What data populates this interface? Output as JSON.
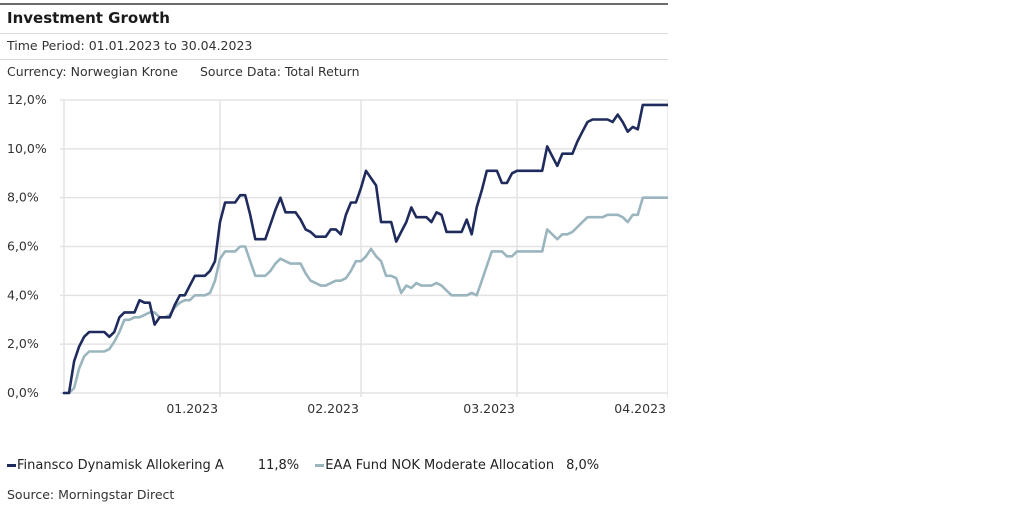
{
  "header": {
    "title": "Investment Growth",
    "time_period": "Time Period: 01.01.2023 to 30.04.2023",
    "currency": "Currency: Norwegian Krone",
    "source_data": "Source Data: Total Return"
  },
  "footer": {
    "source": "Source: Morningstar Direct"
  },
  "colors": {
    "series_1": "#1f2b5c",
    "series_2": "#9bb5bf",
    "grid": "#e3e3e3"
  },
  "chart_data": {
    "type": "line",
    "title": "Investment Growth",
    "xlabel": "",
    "ylabel": "",
    "x_unit": "day index from 01.01.2023",
    "xlim": [
      0,
      120
    ],
    "ylim": [
      0,
      12
    ],
    "grid": true,
    "x_ticks": [
      {
        "x": 31,
        "label": "01.2023"
      },
      {
        "x": 59,
        "label": "02.2023"
      },
      {
        "x": 90,
        "label": "03.2023"
      },
      {
        "x": 120,
        "label": "04.2023"
      }
    ],
    "y_ticks": [
      {
        "y": 0,
        "label": "0,0%"
      },
      {
        "y": 2,
        "label": "2,0%"
      },
      {
        "y": 4,
        "label": "4,0%"
      },
      {
        "y": 6,
        "label": "6,0%"
      },
      {
        "y": 8,
        "label": "8,0%"
      },
      {
        "y": 10,
        "label": "10,0%"
      },
      {
        "y": 12,
        "label": "12,0%"
      }
    ],
    "legend_position": "bottom",
    "series": [
      {
        "name": "Finansco Dynamisk Allokering A",
        "final_value_label": "11,8%",
        "x": [
          0,
          1,
          2,
          3,
          4,
          5,
          6,
          7,
          8,
          9,
          10,
          11,
          12,
          13,
          14,
          15,
          16,
          17,
          18,
          19,
          20,
          21,
          22,
          23,
          24,
          25,
          26,
          27,
          28,
          29,
          30,
          31,
          32,
          33,
          34,
          35,
          36,
          37,
          38,
          39,
          40,
          41,
          42,
          43,
          44,
          45,
          46,
          47,
          48,
          49,
          50,
          51,
          52,
          53,
          54,
          55,
          56,
          57,
          58,
          59,
          60,
          61,
          62,
          63,
          64,
          65,
          66,
          67,
          68,
          69,
          70,
          71,
          72,
          73,
          74,
          75,
          76,
          77,
          78,
          79,
          80,
          81,
          82,
          83,
          84,
          85,
          86,
          87,
          88,
          89,
          90,
          91,
          92,
          93,
          94,
          95,
          96,
          97,
          98,
          99,
          100,
          101,
          102,
          103,
          104,
          105,
          106,
          107,
          108,
          109,
          110,
          111,
          112,
          113,
          114,
          115,
          116,
          117,
          118,
          119,
          120
        ],
        "values": [
          0.0,
          0.0,
          1.3,
          1.9,
          2.3,
          2.5,
          2.5,
          2.5,
          2.5,
          2.3,
          2.5,
          3.1,
          3.3,
          3.3,
          3.3,
          3.8,
          3.7,
          3.7,
          2.8,
          3.1,
          3.1,
          3.1,
          3.6,
          4.0,
          4.0,
          4.4,
          4.8,
          4.8,
          4.8,
          5.0,
          5.4,
          7.0,
          7.8,
          7.8,
          7.8,
          8.1,
          8.1,
          7.3,
          6.3,
          6.3,
          6.3,
          6.9,
          7.5,
          8.0,
          7.4,
          7.4,
          7.4,
          7.1,
          6.7,
          6.6,
          6.4,
          6.4,
          6.4,
          6.7,
          6.7,
          6.5,
          7.3,
          7.8,
          7.8,
          8.4,
          9.1,
          8.8,
          8.5,
          7.0,
          7.0,
          7.0,
          6.2,
          6.6,
          7.0,
          7.6,
          7.2,
          7.2,
          7.2,
          7.0,
          7.4,
          7.3,
          6.6,
          6.6,
          6.6,
          6.6,
          7.1,
          6.5,
          7.6,
          8.3,
          9.1,
          9.1,
          9.1,
          8.6,
          8.6,
          9.0,
          9.1,
          9.1,
          9.1,
          9.1,
          9.1,
          9.1,
          10.1,
          9.7,
          9.3,
          9.8,
          9.8,
          9.8,
          10.3,
          10.7,
          11.1,
          11.2,
          11.2,
          11.2,
          11.2,
          11.1,
          11.4,
          11.1,
          10.7,
          10.9,
          10.8,
          11.8,
          11.8,
          11.8,
          11.8,
          11.8,
          11.8
        ]
      },
      {
        "name": "EAA Fund NOK Moderate Allocation",
        "final_value_label": "8,0%",
        "x": [
          0,
          1,
          2,
          3,
          4,
          5,
          6,
          7,
          8,
          9,
          10,
          11,
          12,
          13,
          14,
          15,
          16,
          17,
          18,
          19,
          20,
          21,
          22,
          23,
          24,
          25,
          26,
          27,
          28,
          29,
          30,
          31,
          32,
          33,
          34,
          35,
          36,
          37,
          38,
          39,
          40,
          41,
          42,
          43,
          44,
          45,
          46,
          47,
          48,
          49,
          50,
          51,
          52,
          53,
          54,
          55,
          56,
          57,
          58,
          59,
          60,
          61,
          62,
          63,
          64,
          65,
          66,
          67,
          68,
          69,
          70,
          71,
          72,
          73,
          74,
          75,
          76,
          77,
          78,
          79,
          80,
          81,
          82,
          83,
          84,
          85,
          86,
          87,
          88,
          89,
          90,
          91,
          92,
          93,
          94,
          95,
          96,
          97,
          98,
          99,
          100,
          101,
          102,
          103,
          104,
          105,
          106,
          107,
          108,
          109,
          110,
          111,
          112,
          113,
          114,
          115,
          116,
          117,
          118,
          119,
          120
        ],
        "values": [
          0.0,
          0.0,
          0.2,
          1.0,
          1.5,
          1.7,
          1.7,
          1.7,
          1.7,
          1.8,
          2.1,
          2.5,
          3.0,
          3.0,
          3.1,
          3.1,
          3.2,
          3.3,
          3.3,
          3.1,
          3.1,
          3.2,
          3.5,
          3.7,
          3.8,
          3.8,
          4.0,
          4.0,
          4.0,
          4.1,
          4.6,
          5.5,
          5.8,
          5.8,
          5.8,
          6.0,
          6.0,
          5.4,
          4.8,
          4.8,
          4.8,
          5.0,
          5.3,
          5.5,
          5.4,
          5.3,
          5.3,
          5.3,
          4.9,
          4.6,
          4.5,
          4.4,
          4.4,
          4.5,
          4.6,
          4.6,
          4.7,
          5.0,
          5.4,
          5.4,
          5.6,
          5.9,
          5.6,
          5.4,
          4.8,
          4.8,
          4.7,
          4.1,
          4.4,
          4.3,
          4.5,
          4.4,
          4.4,
          4.4,
          4.5,
          4.4,
          4.2,
          4.0,
          4.0,
          4.0,
          4.0,
          4.1,
          4.0,
          4.6,
          5.2,
          5.8,
          5.8,
          5.8,
          5.6,
          5.6,
          5.8,
          5.8,
          5.8,
          5.8,
          5.8,
          5.8,
          6.7,
          6.5,
          6.3,
          6.5,
          6.5,
          6.6,
          6.8,
          7.0,
          7.2,
          7.2,
          7.2,
          7.2,
          7.3,
          7.3,
          7.3,
          7.2,
          7.0,
          7.3,
          7.3,
          8.0,
          8.0,
          8.0,
          8.0,
          8.0,
          8.0
        ]
      }
    ]
  }
}
